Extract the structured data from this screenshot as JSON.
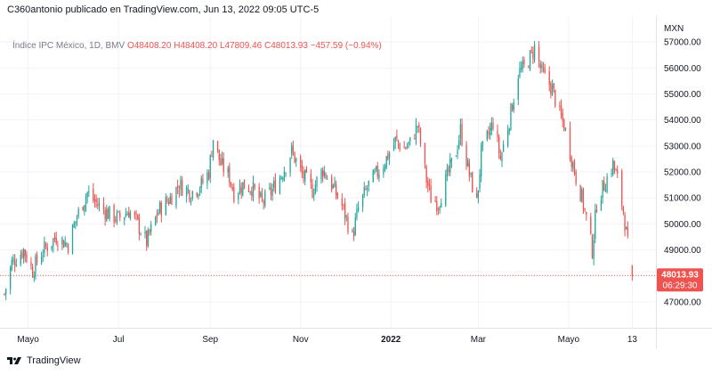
{
  "header": {
    "text": "C360antonio publicado en TradingView.com, Jun 13, 2022 09:05 UTC-5"
  },
  "legend": {
    "symbol": "Índice IPC México, 1D, BMV",
    "open": "O48408.20",
    "high": "H48408.20",
    "low": "L47809.46",
    "close": "C48013.93",
    "change": "−457.59 (−0.94%)"
  },
  "price_label": {
    "value": "48013.93",
    "countdown": "06:29:30"
  },
  "footer": {
    "brand": "TradingView",
    "logo_icon": "tradingview-logo-icon"
  },
  "colors": {
    "up": "#26a69a",
    "down": "#ef5350",
    "grid": "#f0f3fa",
    "axis_text": "#131722",
    "price_tag": "#ef5350"
  },
  "chart_data": {
    "type": "candlestick",
    "axis_currency": "MXN",
    "y_ticks": [
      "47000.00",
      "48000.00",
      "49000.00",
      "50000.00",
      "51000.00",
      "52000.00",
      "53000.00",
      "54000.00",
      "55000.00",
      "56000.00",
      "57000.00"
    ],
    "ylim": [
      46000,
      58000
    ],
    "x_ticks": [
      {
        "label": "Mayo",
        "date": "2021-05-01"
      },
      {
        "label": "Jul",
        "date": "2021-07-01"
      },
      {
        "label": "Sep",
        "date": "2021-09-01"
      },
      {
        "label": "Nov",
        "date": "2021-11-01"
      },
      {
        "label": "2022",
        "date": "2022-01-01",
        "bold": true
      },
      {
        "label": "Mar",
        "date": "2022-03-01"
      },
      {
        "label": "Mayo",
        "date": "2022-05-01"
      },
      {
        "label": "13",
        "date": "2022-06-13"
      }
    ],
    "x_range": [
      "2021-04-12",
      "2022-06-29"
    ],
    "last_price": 48013.93,
    "price_path": [
      [
        "2021-04-15",
        47300
      ],
      [
        "2021-04-20",
        48500
      ],
      [
        "2021-04-28",
        49000
      ],
      [
        "2021-05-04",
        48200
      ],
      [
        "2021-05-10",
        48900
      ],
      [
        "2021-05-20",
        49500
      ],
      [
        "2021-05-28",
        49200
      ],
      [
        "2021-06-03",
        50300
      ],
      [
        "2021-06-10",
        51200
      ],
      [
        "2021-06-16",
        50800
      ],
      [
        "2021-06-24",
        50400
      ],
      [
        "2021-07-01",
        50200
      ],
      [
        "2021-07-08",
        50500
      ],
      [
        "2021-07-13",
        50100
      ],
      [
        "2021-07-20",
        49300
      ],
      [
        "2021-07-28",
        50500
      ],
      [
        "2021-08-05",
        51000
      ],
      [
        "2021-08-11",
        51500
      ],
      [
        "2021-08-19",
        51200
      ],
      [
        "2021-08-26",
        51500
      ],
      [
        "2021-08-31",
        52000
      ],
      [
        "2021-09-03",
        53300
      ],
      [
        "2021-09-08",
        52300
      ],
      [
        "2021-09-14",
        51800
      ],
      [
        "2021-09-17",
        51200
      ],
      [
        "2021-09-23",
        51500
      ],
      [
        "2021-09-29",
        51400
      ],
      [
        "2021-10-06",
        50800
      ],
      [
        "2021-10-13",
        51300
      ],
      [
        "2021-10-20",
        52000
      ],
      [
        "2021-10-26",
        52800
      ],
      [
        "2021-11-02",
        51900
      ],
      [
        "2021-11-09",
        51300
      ],
      [
        "2021-11-16",
        52100
      ],
      [
        "2021-11-22",
        51500
      ],
      [
        "2021-11-29",
        50700
      ],
      [
        "2021-12-06",
        49500
      ],
      [
        "2021-12-10",
        50600
      ],
      [
        "2021-12-17",
        51500
      ],
      [
        "2021-12-27",
        52300
      ],
      [
        "2022-01-04",
        53200
      ],
      [
        "2022-01-10",
        52900
      ],
      [
        "2022-01-14",
        53100
      ],
      [
        "2022-01-19",
        53800
      ],
      [
        "2022-01-25",
        51700
      ],
      [
        "2022-01-28",
        51000
      ],
      [
        "2022-02-02",
        50800
      ],
      [
        "2022-02-08",
        51800
      ],
      [
        "2022-02-14",
        52800
      ],
      [
        "2022-02-17",
        53600
      ],
      [
        "2022-02-23",
        51900
      ],
      [
        "2022-02-28",
        50800
      ],
      [
        "2022-03-03",
        52700
      ],
      [
        "2022-03-07",
        53300
      ],
      [
        "2022-03-11",
        53900
      ],
      [
        "2022-03-16",
        52500
      ],
      [
        "2022-03-22",
        54000
      ],
      [
        "2022-03-28",
        55800
      ],
      [
        "2022-04-01",
        56000
      ],
      [
        "2022-04-06",
        56500
      ],
      [
        "2022-04-08",
        56800
      ],
      [
        "2022-04-13",
        55800
      ],
      [
        "2022-04-20",
        55200
      ],
      [
        "2022-04-25",
        54200
      ],
      [
        "2022-04-28",
        53800
      ],
      [
        "2022-05-02",
        52800
      ],
      [
        "2022-05-06",
        51800
      ],
      [
        "2022-05-10",
        51000
      ],
      [
        "2022-05-13",
        50200
      ],
      [
        "2022-05-17",
        49000
      ],
      [
        "2022-05-20",
        50800
      ],
      [
        "2022-05-25",
        51500
      ],
      [
        "2022-05-31",
        52300
      ],
      [
        "2022-06-03",
        51700
      ],
      [
        "2022-06-07",
        50500
      ],
      [
        "2022-06-10",
        49200
      ],
      [
        "2022-06-13",
        48013.93
      ]
    ]
  }
}
